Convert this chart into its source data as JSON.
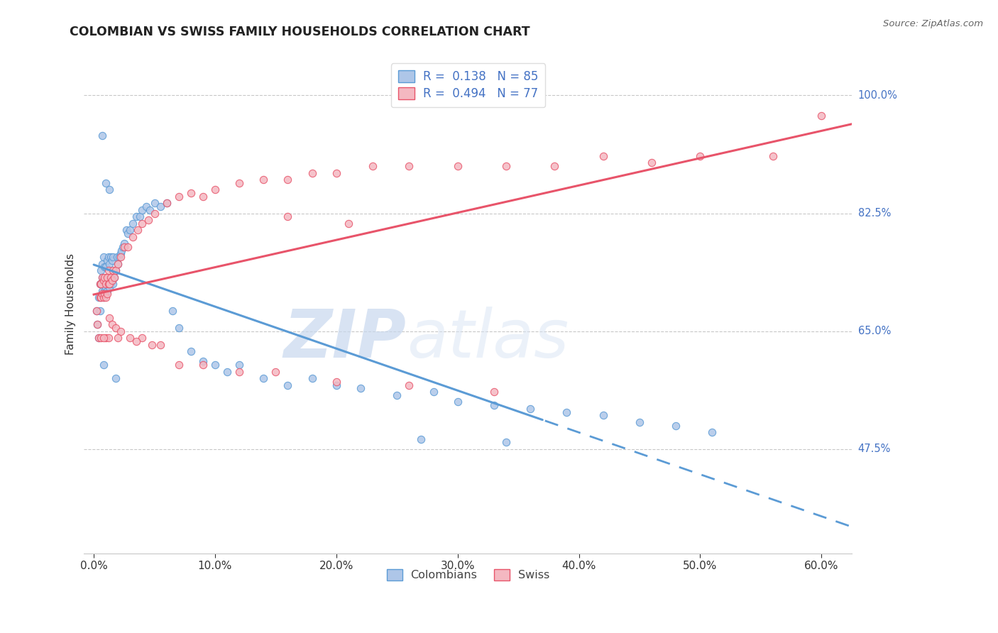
{
  "title": "COLOMBIAN VS SWISS FAMILY HOUSEHOLDS CORRELATION CHART",
  "source": "Source: ZipAtlas.com",
  "ylabel": "Family Households",
  "ytick_labels": [
    "100.0%",
    "82.5%",
    "65.0%",
    "47.5%"
  ],
  "ytick_values": [
    1.0,
    0.825,
    0.65,
    0.475
  ],
  "ymin": 0.32,
  "ymax": 1.06,
  "xmin": -0.008,
  "xmax": 0.625,
  "legend_colombians": "Colombians",
  "legend_swiss": "Swiss",
  "color_colombian_fill": "#aec6e8",
  "color_colombian_edge": "#5b9bd5",
  "color_swiss_fill": "#f4b8c1",
  "color_swiss_edge": "#e8546a",
  "color_line_colombian": "#5b9bd5",
  "color_line_swiss": "#e8546a",
  "color_legend_text": "#4472c4",
  "color_right_labels": "#4472c4",
  "watermark_zip": "ZIP",
  "watermark_atlas": "atlas",
  "colombian_x": [
    0.002,
    0.003,
    0.004,
    0.004,
    0.005,
    0.005,
    0.006,
    0.006,
    0.006,
    0.007,
    0.007,
    0.007,
    0.008,
    0.008,
    0.008,
    0.009,
    0.009,
    0.009,
    0.01,
    0.01,
    0.01,
    0.01,
    0.011,
    0.011,
    0.011,
    0.012,
    0.012,
    0.013,
    0.013,
    0.014,
    0.014,
    0.015,
    0.015,
    0.016,
    0.016,
    0.017,
    0.018,
    0.019,
    0.02,
    0.021,
    0.022,
    0.023,
    0.024,
    0.025,
    0.027,
    0.028,
    0.03,
    0.032,
    0.035,
    0.038,
    0.04,
    0.043,
    0.046,
    0.05,
    0.055,
    0.06,
    0.065,
    0.07,
    0.08,
    0.09,
    0.1,
    0.11,
    0.12,
    0.14,
    0.16,
    0.18,
    0.2,
    0.22,
    0.25,
    0.28,
    0.3,
    0.33,
    0.36,
    0.39,
    0.42,
    0.45,
    0.48,
    0.51,
    0.27,
    0.34,
    0.007,
    0.01,
    0.013,
    0.008,
    0.018
  ],
  "colombian_y": [
    0.68,
    0.66,
    0.64,
    0.7,
    0.72,
    0.68,
    0.7,
    0.72,
    0.74,
    0.71,
    0.73,
    0.75,
    0.7,
    0.72,
    0.76,
    0.71,
    0.725,
    0.745,
    0.705,
    0.715,
    0.725,
    0.745,
    0.71,
    0.73,
    0.755,
    0.72,
    0.76,
    0.715,
    0.75,
    0.72,
    0.76,
    0.725,
    0.755,
    0.72,
    0.76,
    0.73,
    0.74,
    0.76,
    0.75,
    0.76,
    0.765,
    0.77,
    0.775,
    0.78,
    0.8,
    0.795,
    0.8,
    0.81,
    0.82,
    0.82,
    0.83,
    0.835,
    0.83,
    0.84,
    0.835,
    0.84,
    0.68,
    0.655,
    0.62,
    0.605,
    0.6,
    0.59,
    0.6,
    0.58,
    0.57,
    0.58,
    0.57,
    0.565,
    0.555,
    0.56,
    0.545,
    0.54,
    0.535,
    0.53,
    0.525,
    0.515,
    0.51,
    0.5,
    0.49,
    0.485,
    0.94,
    0.87,
    0.86,
    0.6,
    0.58
  ],
  "swiss_x": [
    0.002,
    0.003,
    0.004,
    0.005,
    0.005,
    0.006,
    0.006,
    0.007,
    0.007,
    0.008,
    0.008,
    0.009,
    0.009,
    0.01,
    0.01,
    0.011,
    0.011,
    0.012,
    0.012,
    0.013,
    0.014,
    0.015,
    0.016,
    0.017,
    0.018,
    0.02,
    0.022,
    0.025,
    0.028,
    0.032,
    0.036,
    0.04,
    0.045,
    0.05,
    0.06,
    0.07,
    0.08,
    0.09,
    0.1,
    0.12,
    0.14,
    0.16,
    0.18,
    0.2,
    0.23,
    0.26,
    0.3,
    0.34,
    0.38,
    0.42,
    0.46,
    0.5,
    0.56,
    0.6,
    0.013,
    0.015,
    0.018,
    0.022,
    0.03,
    0.04,
    0.055,
    0.07,
    0.09,
    0.12,
    0.15,
    0.2,
    0.26,
    0.33,
    0.01,
    0.012,
    0.006,
    0.008,
    0.02,
    0.035,
    0.048,
    0.16,
    0.21
  ],
  "swiss_y": [
    0.68,
    0.66,
    0.64,
    0.7,
    0.72,
    0.7,
    0.72,
    0.705,
    0.73,
    0.7,
    0.725,
    0.705,
    0.73,
    0.7,
    0.72,
    0.705,
    0.73,
    0.72,
    0.74,
    0.72,
    0.73,
    0.725,
    0.74,
    0.73,
    0.74,
    0.75,
    0.76,
    0.775,
    0.775,
    0.79,
    0.8,
    0.81,
    0.815,
    0.825,
    0.84,
    0.85,
    0.855,
    0.85,
    0.86,
    0.87,
    0.875,
    0.875,
    0.885,
    0.885,
    0.895,
    0.895,
    0.895,
    0.895,
    0.895,
    0.91,
    0.9,
    0.91,
    0.91,
    0.97,
    0.67,
    0.66,
    0.655,
    0.65,
    0.64,
    0.64,
    0.63,
    0.6,
    0.6,
    0.59,
    0.59,
    0.575,
    0.57,
    0.56,
    0.64,
    0.64,
    0.64,
    0.64,
    0.64,
    0.635,
    0.63,
    0.82,
    0.81
  ]
}
